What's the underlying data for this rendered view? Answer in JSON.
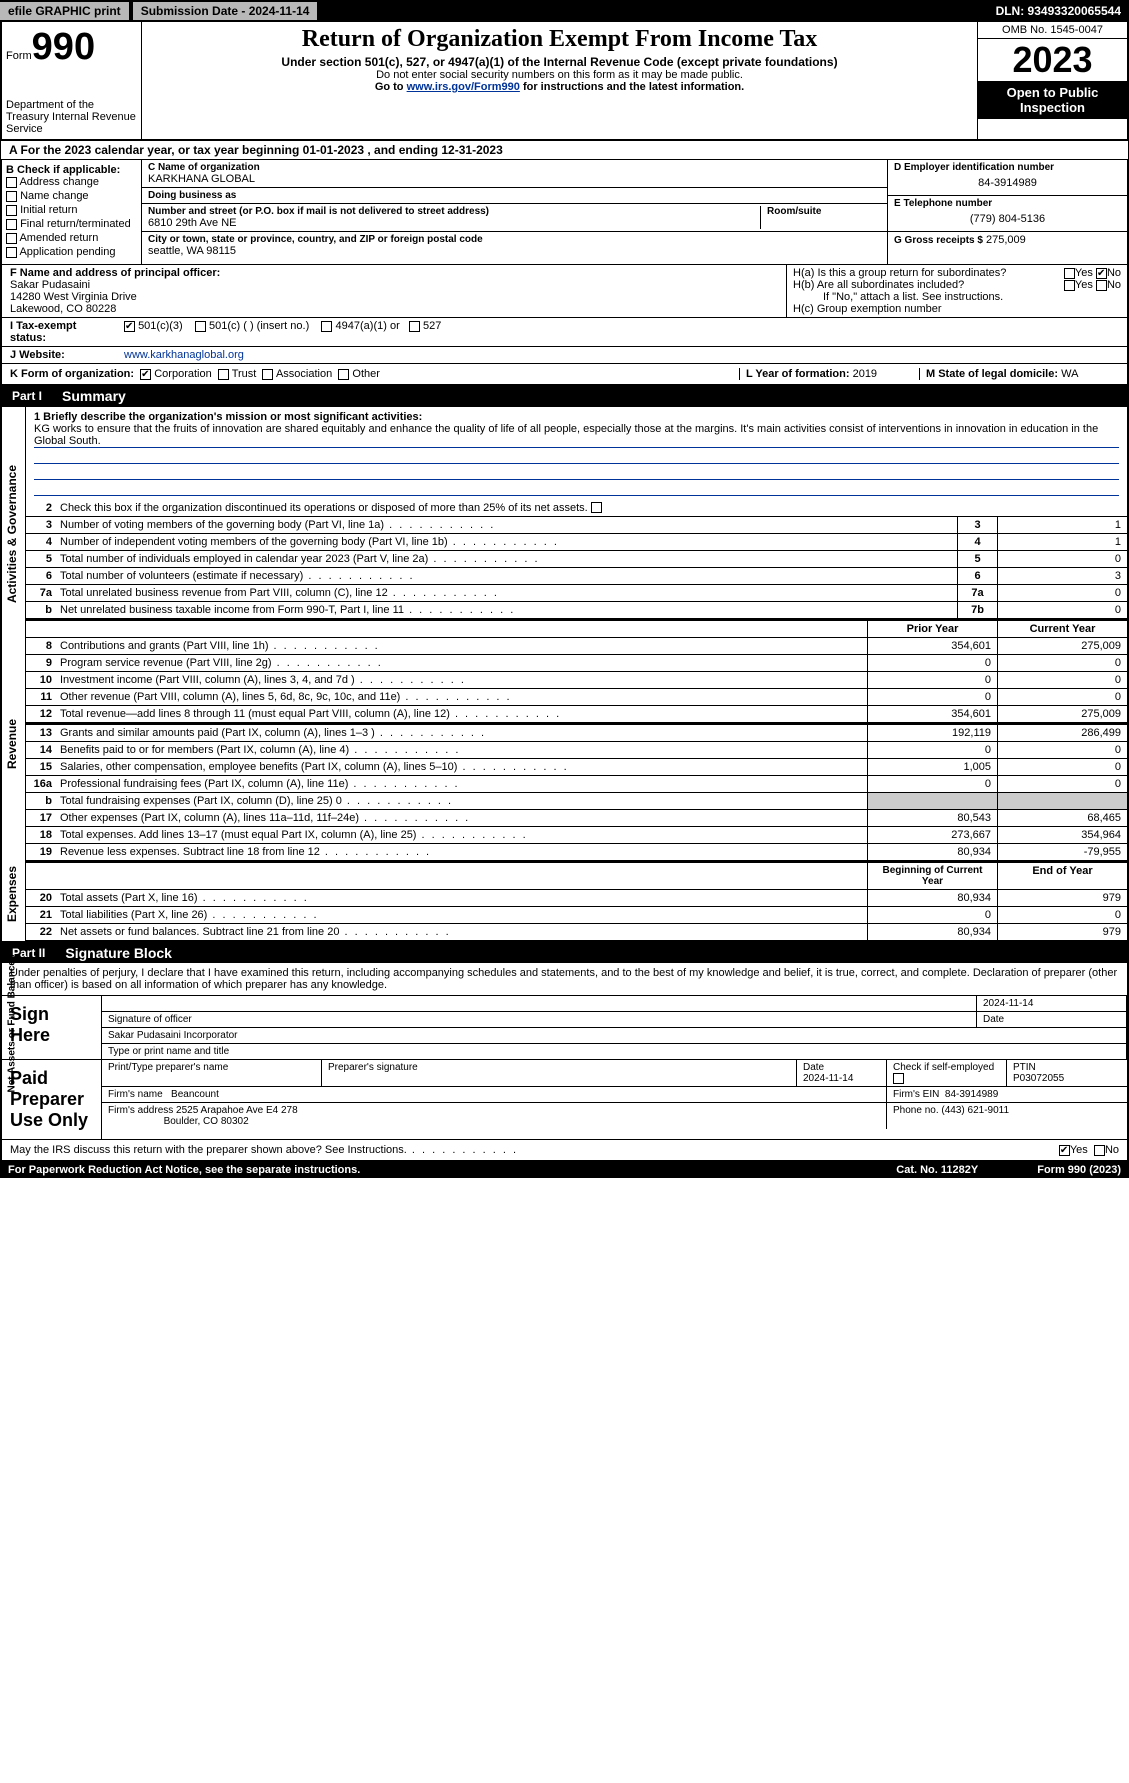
{
  "topbar": {
    "efile": "efile GRAPHIC print",
    "submission": "Submission Date - 2024-11-14",
    "dln": "DLN: 93493320065544"
  },
  "header": {
    "form_label": "Form",
    "form_num": "990",
    "dept": "Department of the Treasury Internal Revenue Service",
    "title": "Return of Organization Exempt From Income Tax",
    "sub1": "Under section 501(c), 527, or 4947(a)(1) of the Internal Revenue Code (except private foundations)",
    "sub2": "Do not enter social security numbers on this form as it may be made public.",
    "sub3_pre": "Go to ",
    "sub3_link": "www.irs.gov/Form990",
    "sub3_post": " for instructions and the latest information.",
    "omb": "OMB No. 1545-0047",
    "year": "2023",
    "inspect": "Open to Public Inspection"
  },
  "row_a": "A For the 2023 calendar year, or tax year beginning 01-01-2023    , and ending 12-31-2023",
  "section_b": {
    "label": "B Check if applicable:",
    "items": [
      "Address change",
      "Name change",
      "Initial return",
      "Final return/terminated",
      "Amended return",
      "Application pending"
    ]
  },
  "section_c": {
    "name_label": "C Name of organization",
    "name": "KARKHANA GLOBAL",
    "dba_label": "Doing business as",
    "dba": "",
    "addr_label": "Number and street (or P.O. box if mail is not delivered to street address)",
    "room_label": "Room/suite",
    "addr": "6810 29th Ave NE",
    "city_label": "City or town, state or province, country, and ZIP or foreign postal code",
    "city": "seattle, WA  98115"
  },
  "section_d": {
    "ein_label": "D Employer identification number",
    "ein": "84-3914989",
    "tel_label": "E Telephone number",
    "tel": "(779) 804-5136",
    "gross_label": "G Gross receipts $",
    "gross": "275,009"
  },
  "section_f": {
    "label": "F  Name and address of principal officer:",
    "name": "Sakar Pudasaini",
    "addr1": "14280 West Virginia Drive",
    "addr2": "Lakewood, CO  80228"
  },
  "section_h": {
    "ha": "H(a)  Is this a group return for subordinates?",
    "ha_yes": "Yes",
    "ha_no": "No",
    "hb": "H(b)  Are all subordinates included?",
    "hb_yes": "Yes",
    "hb_no": "No",
    "hb_note": "If \"No,\" attach a list. See instructions.",
    "hc": "H(c)  Group exemption number"
  },
  "row_i": {
    "label": "I    Tax-exempt status:",
    "opts": [
      "501(c)(3)",
      "501(c) (  ) (insert no.)",
      "4947(a)(1) or",
      "527"
    ]
  },
  "row_j": {
    "label": "J   Website:",
    "val": "www.karkhanaglobal.org"
  },
  "row_k": {
    "label": "K Form of organization:",
    "opts": [
      "Corporation",
      "Trust",
      "Association",
      "Other"
    ]
  },
  "row_l": {
    "label": "L Year of formation:",
    "val": "2019"
  },
  "row_m": {
    "label": "M State of legal domicile:",
    "val": "WA"
  },
  "part1": {
    "num": "Part I",
    "title": "Summary"
  },
  "mission": {
    "label": "1   Briefly describe the organization's mission or most significant activities:",
    "text": "KG works to ensure that the fruits of innovation are shared equitably and enhance the quality of life of all people, especially those at the margins. It's main activities consist of interventions in innovation in education in the Global South."
  },
  "line2": "Check this box       if the organization discontinued its operations or disposed of more than 25% of its net assets.",
  "vtabs": {
    "ag": "Activities & Governance",
    "rev": "Revenue",
    "exp": "Expenses",
    "net": "Net Assets or Fund Balances"
  },
  "lines_gov": [
    {
      "n": "3",
      "d": "Number of voting members of the governing body (Part VI, line 1a)",
      "box": "3",
      "v": "1"
    },
    {
      "n": "4",
      "d": "Number of independent voting members of the governing body (Part VI, line 1b)",
      "box": "4",
      "v": "1"
    },
    {
      "n": "5",
      "d": "Total number of individuals employed in calendar year 2023 (Part V, line 2a)",
      "box": "5",
      "v": "0"
    },
    {
      "n": "6",
      "d": "Total number of volunteers (estimate if necessary)",
      "box": "6",
      "v": "3"
    },
    {
      "n": "7a",
      "d": "Total unrelated business revenue from Part VIII, column (C), line 12",
      "box": "7a",
      "v": "0"
    },
    {
      "n": "b",
      "d": "Net unrelated business taxable income from Form 990-T, Part I, line 11",
      "box": "7b",
      "v": "0"
    }
  ],
  "col_hdrs": {
    "prior": "Prior Year",
    "current": "Current Year"
  },
  "lines_rev": [
    {
      "n": "8",
      "d": "Contributions and grants (Part VIII, line 1h)",
      "p": "354,601",
      "c": "275,009"
    },
    {
      "n": "9",
      "d": "Program service revenue (Part VIII, line 2g)",
      "p": "0",
      "c": "0"
    },
    {
      "n": "10",
      "d": "Investment income (Part VIII, column (A), lines 3, 4, and 7d )",
      "p": "0",
      "c": "0"
    },
    {
      "n": "11",
      "d": "Other revenue (Part VIII, column (A), lines 5, 6d, 8c, 9c, 10c, and 11e)",
      "p": "0",
      "c": "0"
    },
    {
      "n": "12",
      "d": "Total revenue—add lines 8 through 11 (must equal Part VIII, column (A), line 12)",
      "p": "354,601",
      "c": "275,009"
    }
  ],
  "lines_exp": [
    {
      "n": "13",
      "d": "Grants and similar amounts paid (Part IX, column (A), lines 1–3 )",
      "p": "192,119",
      "c": "286,499"
    },
    {
      "n": "14",
      "d": "Benefits paid to or for members (Part IX, column (A), line 4)",
      "p": "0",
      "c": "0"
    },
    {
      "n": "15",
      "d": "Salaries, other compensation, employee benefits (Part IX, column (A), lines 5–10)",
      "p": "1,005",
      "c": "0"
    },
    {
      "n": "16a",
      "d": "Professional fundraising fees (Part IX, column (A), line 11e)",
      "p": "0",
      "c": "0"
    },
    {
      "n": "b",
      "d": "Total fundraising expenses (Part IX, column (D), line 25) 0",
      "p": "",
      "c": "",
      "shaded": true
    },
    {
      "n": "17",
      "d": "Other expenses (Part IX, column (A), lines 11a–11d, 11f–24e)",
      "p": "80,543",
      "c": "68,465"
    },
    {
      "n": "18",
      "d": "Total expenses. Add lines 13–17 (must equal Part IX, column (A), line 25)",
      "p": "273,667",
      "c": "354,964"
    },
    {
      "n": "19",
      "d": "Revenue less expenses. Subtract line 18 from line 12",
      "p": "80,934",
      "c": "-79,955"
    }
  ],
  "col_hdrs2": {
    "begin": "Beginning of Current Year",
    "end": "End of Year"
  },
  "lines_net": [
    {
      "n": "20",
      "d": "Total assets (Part X, line 16)",
      "p": "80,934",
      "c": "979"
    },
    {
      "n": "21",
      "d": "Total liabilities (Part X, line 26)",
      "p": "0",
      "c": "0"
    },
    {
      "n": "22",
      "d": "Net assets or fund balances. Subtract line 21 from line 20",
      "p": "80,934",
      "c": "979"
    }
  ],
  "part2": {
    "num": "Part II",
    "title": "Signature Block"
  },
  "sig": {
    "decl": "Under penalties of perjury, I declare that I have examined this return, including accompanying schedules and statements, and to the best of my knowledge and belief, it is true, correct, and complete. Declaration of preparer (other than officer) is based on all information of which preparer has any knowledge.",
    "sign_here": "Sign Here",
    "sig_off": "Signature of officer",
    "date1": "2024-11-14",
    "date_lbl": "Date",
    "officer": "Sakar Pudasaini  Incorporator",
    "type_lbl": "Type or print name and title",
    "paid": "Paid Preparer Use Only",
    "prep_name_lbl": "Print/Type preparer's name",
    "prep_sig_lbl": "Preparer's signature",
    "date2": "2024-11-14",
    "check_lbl": "Check        if self-employed",
    "ptin_lbl": "PTIN",
    "ptin": "P03072055",
    "firm_name_lbl": "Firm's name",
    "firm_name": "Beancount",
    "firm_ein_lbl": "Firm's EIN",
    "firm_ein": "84-3914989",
    "firm_addr_lbl": "Firm's address",
    "firm_addr1": "2525 Arapahoe Ave E4 278",
    "firm_addr2": "Boulder, CO  80302",
    "phone_lbl": "Phone no.",
    "phone": "(443) 621-9011",
    "discuss": "May the IRS discuss this return with the preparer shown above? See Instructions.",
    "yes": "Yes",
    "no": "No"
  },
  "footer": {
    "left": "For Paperwork Reduction Act Notice, see the separate instructions.",
    "mid": "Cat. No. 11282Y",
    "right": "Form 990 (2023)"
  },
  "colors": {
    "black": "#000000",
    "white": "#ffffff",
    "gray": "#b8b8b8",
    "shade": "#cccccc",
    "link": "#003399"
  }
}
